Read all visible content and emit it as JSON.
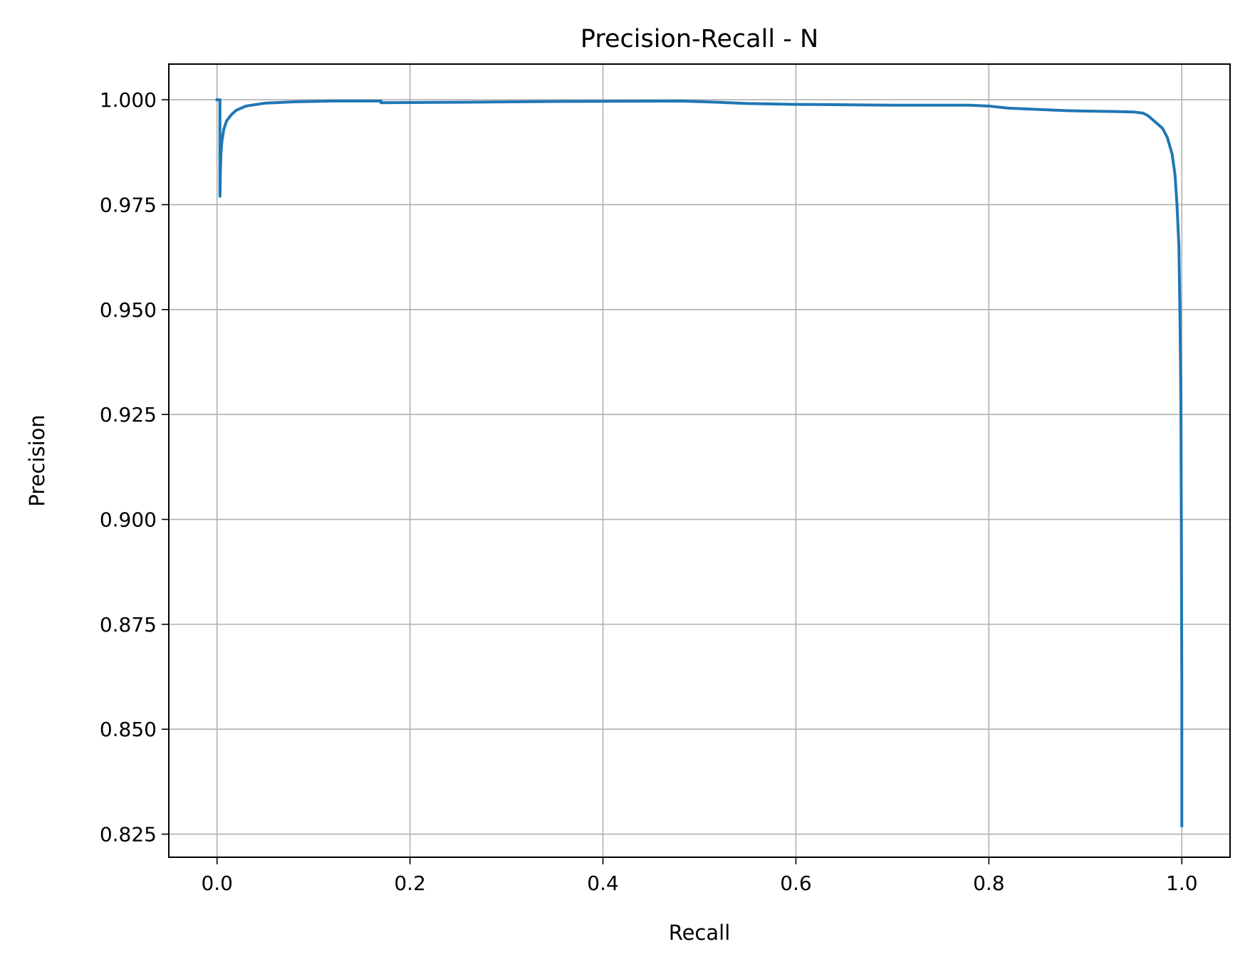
{
  "chart_data": {
    "type": "line",
    "title": "Precision-Recall - N",
    "xlabel": "Recall",
    "ylabel": "Precision",
    "xlim": [
      -0.05,
      1.05
    ],
    "ylim": [
      0.8195,
      1.0085
    ],
    "xticks": [
      0.0,
      0.2,
      0.4,
      0.6,
      0.8,
      1.0
    ],
    "xtick_labels": [
      "0.0",
      "0.2",
      "0.4",
      "0.6",
      "0.8",
      "1.0"
    ],
    "yticks": [
      0.825,
      0.85,
      0.875,
      0.9,
      0.925,
      0.95,
      0.975,
      1.0
    ],
    "ytick_labels": [
      "0.825",
      "0.850",
      "0.875",
      "0.900",
      "0.925",
      "0.950",
      "0.975",
      "1.000"
    ],
    "grid": true,
    "colors": {
      "line": "#1f77b4",
      "grid": "#b0b0b0",
      "axes": "#000000"
    },
    "series": [
      {
        "x": [
          0.0,
          0.003,
          0.003,
          0.0035,
          0.004,
          0.005,
          0.007,
          0.01,
          0.015,
          0.02,
          0.03,
          0.05,
          0.08,
          0.12,
          0.17,
          0.17,
          0.25,
          0.35,
          0.48,
          0.52,
          0.55,
          0.6,
          0.7,
          0.75,
          0.78,
          0.8,
          0.82,
          0.85,
          0.88,
          0.9,
          0.93,
          0.95,
          0.96,
          0.965,
          0.97,
          0.975,
          0.98,
          0.985,
          0.99,
          0.993,
          0.995,
          0.997,
          0.998,
          0.999,
          0.9995,
          1.0,
          1.0
        ],
        "y": [
          1.0,
          1.0,
          0.977,
          0.983,
          0.987,
          0.99,
          0.993,
          0.995,
          0.9965,
          0.9975,
          0.9985,
          0.9992,
          0.9995,
          0.9997,
          0.9997,
          0.9993,
          0.9994,
          0.9996,
          0.9997,
          0.9994,
          0.9991,
          0.9989,
          0.9987,
          0.9987,
          0.9987,
          0.9985,
          0.998,
          0.9977,
          0.9974,
          0.9973,
          0.9972,
          0.9971,
          0.9968,
          0.9962,
          0.9952,
          0.9942,
          0.9932,
          0.991,
          0.987,
          0.982,
          0.975,
          0.965,
          0.95,
          0.93,
          0.9,
          0.86,
          0.827
        ]
      }
    ]
  }
}
